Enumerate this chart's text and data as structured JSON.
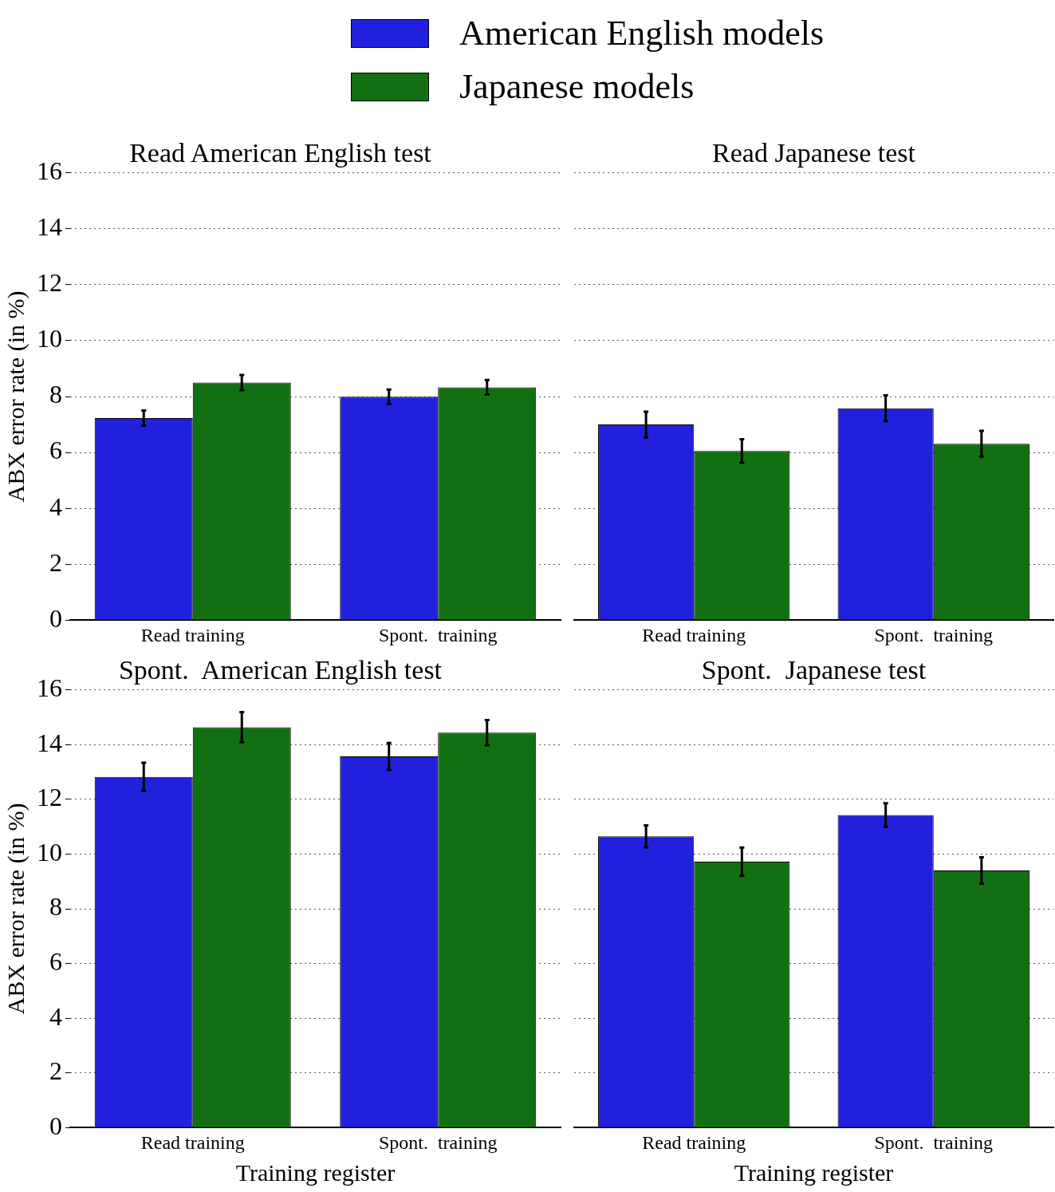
{
  "chart_data": [
    {
      "type": "bar",
      "title": "Read American English test",
      "ylabel": "ABX error rate (in %)",
      "categories": [
        "Read training",
        "Spont.  training"
      ],
      "ylim": [
        0,
        16
      ],
      "yticks": [
        0,
        2,
        4,
        6,
        8,
        10,
        12,
        14,
        16
      ],
      "grid": "y",
      "legend": "top",
      "series": [
        {
          "name": "American English models",
          "color": "#2121dd",
          "values": [
            7.23,
            7.99
          ],
          "errors": [
            0.27,
            0.26
          ]
        },
        {
          "name": "Japanese models",
          "color": "#127012",
          "values": [
            8.5,
            8.33
          ],
          "errors": [
            0.27,
            0.26
          ]
        }
      ]
    },
    {
      "type": "bar",
      "title": "Read Japanese test",
      "categories": [
        "Read training",
        "Spont.  training"
      ],
      "ylim": [
        0,
        16
      ],
      "yticks": [
        0,
        2,
        4,
        6,
        8,
        10,
        12,
        14,
        16
      ],
      "grid": "y",
      "tick_labels": "x",
      "series": [
        {
          "color": "#2121dd",
          "values": [
            7.0,
            7.58
          ],
          "errors": [
            0.46,
            0.46
          ]
        },
        {
          "color": "#127012",
          "values": [
            6.05,
            6.31
          ],
          "errors": [
            0.42,
            0.46
          ]
        }
      ]
    },
    {
      "type": "bar",
      "title": "Spont.  American English test",
      "ylabel": "ABX error rate (in %)",
      "xlabel": "Training register",
      "categories": [
        "Read training",
        "Spont.  training"
      ],
      "ylim": [
        0,
        16
      ],
      "yticks": [
        0,
        2,
        4,
        6,
        8,
        10,
        12,
        14,
        16
      ],
      "grid": "y",
      "series": [
        {
          "color": "#2121dd",
          "values": [
            12.82,
            13.57
          ],
          "errors": [
            0.52,
            0.49
          ]
        },
        {
          "color": "#127012",
          "values": [
            14.64,
            14.44
          ],
          "errors": [
            0.55,
            0.46
          ]
        }
      ]
    },
    {
      "type": "bar",
      "title": "Spont.  Japanese test",
      "xlabel": "Training register",
      "categories": [
        "Read training",
        "Spont.  training"
      ],
      "ylim": [
        0,
        16
      ],
      "yticks": [
        0,
        2,
        4,
        6,
        8,
        10,
        12,
        14,
        16
      ],
      "grid": "y",
      "tick_labels": "x",
      "series": [
        {
          "color": "#2121dd",
          "values": [
            10.65,
            11.43
          ],
          "errors": [
            0.4,
            0.43
          ]
        },
        {
          "color": "#127012",
          "values": [
            9.72,
            9.4
          ],
          "errors": [
            0.52,
            0.48
          ]
        }
      ]
    }
  ]
}
